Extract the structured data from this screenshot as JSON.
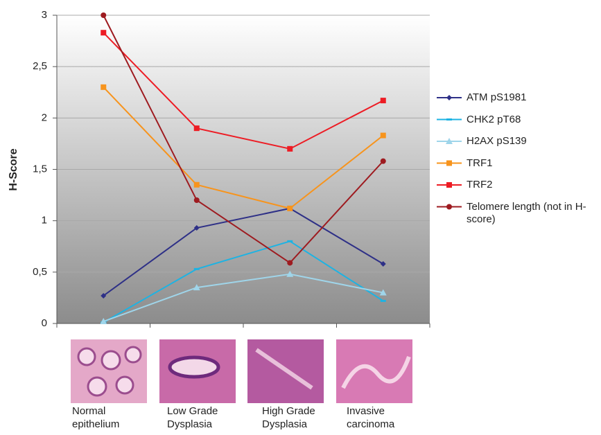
{
  "chart_data": {
    "type": "line",
    "y_label": "H-Score",
    "categories": [
      "Normal epithelium",
      "Low Grade Dysplasia",
      "High Grade Dysplasia",
      "Invasive carcinoma"
    ],
    "series": [
      {
        "name": "ATM pS1981",
        "color": "#2e3087",
        "marker": "diamond",
        "values": [
          0.27,
          0.93,
          1.12,
          0.58
        ]
      },
      {
        "name": "CHK2 pT68",
        "color": "#1db3e3",
        "marker": "dash",
        "values": [
          0.01,
          0.53,
          0.8,
          0.22
        ]
      },
      {
        "name": "H2AX pS139",
        "color": "#9fd5ea",
        "marker": "triangle",
        "values": [
          0.02,
          0.35,
          0.48,
          0.3
        ]
      },
      {
        "name": "TRF1",
        "color": "#f7941d",
        "marker": "square",
        "values": [
          2.3,
          1.35,
          1.12,
          1.83
        ]
      },
      {
        "name": "TRF2",
        "color": "#ed1c24",
        "marker": "square",
        "values": [
          2.83,
          1.9,
          1.7,
          2.17
        ]
      },
      {
        "name": "Telomere length (not in H-score)",
        "color": "#9e1b20",
        "marker": "circle",
        "values": [
          3.0,
          1.2,
          0.59,
          1.58
        ]
      }
    ],
    "ylim": [
      0,
      3
    ],
    "yticks": [
      0,
      {
        "value": 0.5,
        "label": "0,5"
      },
      1,
      {
        "value": 1.5,
        "label": "1,5"
      },
      2,
      {
        "value": 2.5,
        "label": "2,5"
      },
      3
    ],
    "grid": true,
    "legend": "right"
  }
}
